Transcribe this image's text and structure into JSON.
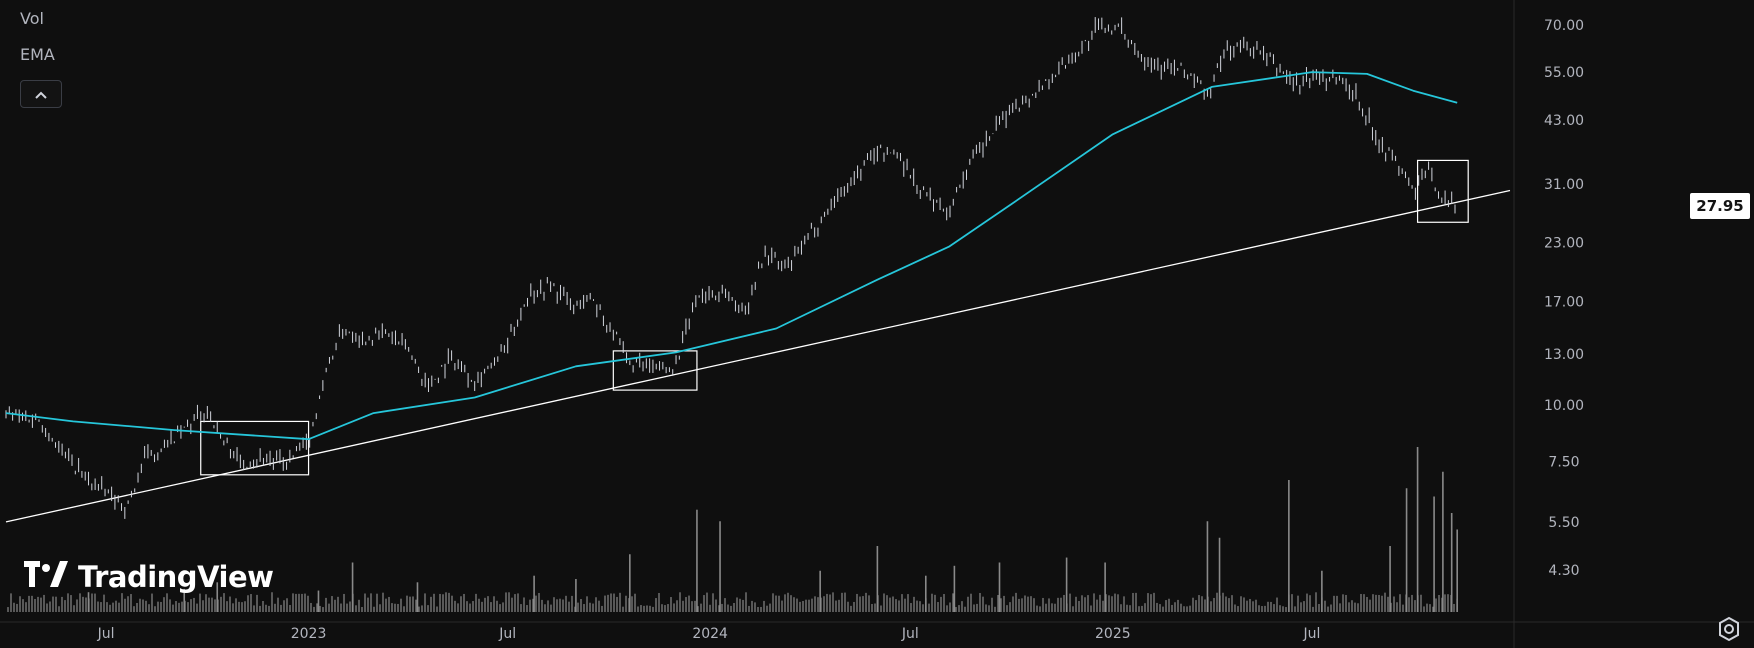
{
  "legend": {
    "vol_label": "Vol",
    "ema_label": "EMA"
  },
  "branding": {
    "logo_text": "TradingView"
  },
  "colors": {
    "background": "#0f0f0f",
    "price": "#d1d4dc",
    "ema": "#26c6da",
    "volume": "#8a8a8a",
    "trendline": "#ffffff",
    "axis_text": "#b2b5be"
  },
  "icons": {
    "collapse": "chevron-up-icon",
    "settings": "gear-icon"
  },
  "chart_data": {
    "type": "line",
    "y_scale": "log",
    "grid": false,
    "last_price": "27.95",
    "y_ticks": [
      "70.00",
      "55.00",
      "43.00",
      "31.00",
      "23.00",
      "17.00",
      "13.00",
      "10.00",
      "7.50",
      "5.50",
      "4.30"
    ],
    "y_tick_values": [
      70,
      55,
      43,
      31,
      23,
      17,
      13,
      10,
      7.5,
      5.5,
      4.3
    ],
    "x_ticks": [
      {
        "label": "Jul",
        "date": "2022-07-01"
      },
      {
        "label": "2023",
        "date": "2023-01-01"
      },
      {
        "label": "Jul",
        "date": "2023-07-01"
      },
      {
        "label": "2024",
        "date": "2024-01-01"
      },
      {
        "label": "Jul",
        "date": "2024-07-01"
      },
      {
        "label": "2025",
        "date": "2025-01-01"
      },
      {
        "label": "Jul",
        "date": "2025-07-01"
      }
    ],
    "x_range": [
      "2022-04-01",
      "2025-12-28"
    ],
    "price_series": {
      "type": "ohlc",
      "points": [
        [
          "2022-04-01",
          9.6
        ],
        [
          "2022-05-01",
          9.3
        ],
        [
          "2022-05-20",
          8.0
        ],
        [
          "2022-06-10",
          7.0
        ],
        [
          "2022-07-01",
          6.4
        ],
        [
          "2022-07-20",
          5.9
        ],
        [
          "2022-08-05",
          7.6
        ],
        [
          "2022-08-25",
          8.2
        ],
        [
          "2022-09-15",
          9.0
        ],
        [
          "2022-10-01",
          9.8
        ],
        [
          "2022-10-15",
          8.4
        ],
        [
          "2022-11-01",
          7.4
        ],
        [
          "2022-11-20",
          7.7
        ],
        [
          "2022-12-10",
          7.4
        ],
        [
          "2023-01-01",
          8.2
        ],
        [
          "2023-01-15",
          11.5
        ],
        [
          "2023-02-01",
          14.8
        ],
        [
          "2023-02-20",
          14.0
        ],
        [
          "2023-03-10",
          14.6
        ],
        [
          "2023-04-01",
          13.4
        ],
        [
          "2023-04-20",
          11.0
        ],
        [
          "2023-05-10",
          12.8
        ],
        [
          "2023-06-01",
          11.4
        ],
        [
          "2023-06-20",
          12.5
        ],
        [
          "2023-07-01",
          13.6
        ],
        [
          "2023-07-20",
          17.8
        ],
        [
          "2023-08-10",
          18.5
        ],
        [
          "2023-08-30",
          16.5
        ],
        [
          "2023-09-15",
          17.5
        ],
        [
          "2023-10-01",
          15.0
        ],
        [
          "2023-10-20",
          12.4
        ],
        [
          "2023-11-10",
          12.0
        ],
        [
          "2023-12-01",
          12.3
        ],
        [
          "2023-12-20",
          17.5
        ],
        [
          "2024-01-15",
          17.8
        ],
        [
          "2024-02-01",
          16.0
        ],
        [
          "2024-02-20",
          22.0
        ],
        [
          "2024-03-10",
          20.0
        ],
        [
          "2024-04-01",
          24.0
        ],
        [
          "2024-04-20",
          28.0
        ],
        [
          "2024-05-10",
          32.0
        ],
        [
          "2024-06-01",
          37.0
        ],
        [
          "2024-06-20",
          36.0
        ],
        [
          "2024-07-10",
          30.0
        ],
        [
          "2024-08-05",
          27.0
        ],
        [
          "2024-08-20",
          33.0
        ],
        [
          "2024-09-10",
          39.0
        ],
        [
          "2024-10-01",
          46.0
        ],
        [
          "2024-10-20",
          49.0
        ],
        [
          "2024-11-10",
          55.0
        ],
        [
          "2024-12-01",
          61.0
        ],
        [
          "2024-12-20",
          70.0
        ],
        [
          "2025-01-10",
          68.0
        ],
        [
          "2025-01-30",
          59.0
        ],
        [
          "2025-02-20",
          56.0
        ],
        [
          "2025-03-10",
          55.0
        ],
        [
          "2025-03-28",
          49.0
        ],
        [
          "2025-04-15",
          62.0
        ],
        [
          "2025-05-05",
          63.0
        ],
        [
          "2025-05-25",
          58.0
        ],
        [
          "2025-06-15",
          52.0
        ],
        [
          "2025-07-05",
          54.0
        ],
        [
          "2025-07-25",
          53.0
        ],
        [
          "2025-08-10",
          49.0
        ],
        [
          "2025-08-30",
          39.0
        ],
        [
          "2025-09-15",
          35.0
        ],
        [
          "2025-10-01",
          30.0
        ],
        [
          "2025-10-15",
          33.0
        ],
        [
          "2025-11-01",
          28.0
        ],
        [
          "2025-11-10",
          27.95
        ]
      ]
    },
    "ema_series": {
      "points": [
        [
          "2022-04-01",
          9.6
        ],
        [
          "2022-06-01",
          9.2
        ],
        [
          "2022-09-01",
          8.8
        ],
        [
          "2022-12-01",
          8.5
        ],
        [
          "2023-01-01",
          8.4
        ],
        [
          "2023-03-01",
          9.6
        ],
        [
          "2023-06-01",
          10.4
        ],
        [
          "2023-09-01",
          12.2
        ],
        [
          "2023-12-01",
          13.1
        ],
        [
          "2024-03-01",
          14.8
        ],
        [
          "2024-06-01",
          19.0
        ],
        [
          "2024-08-05",
          22.5
        ],
        [
          "2024-10-01",
          28.0
        ],
        [
          "2025-01-01",
          40.0
        ],
        [
          "2025-04-01",
          51.0
        ],
        [
          "2025-07-01",
          55.0
        ],
        [
          "2025-08-20",
          54.5
        ],
        [
          "2025-10-01",
          50.0
        ],
        [
          "2025-11-10",
          47.0
        ]
      ]
    },
    "trendline": {
      "start": [
        "2022-04-01",
        5.5
      ],
      "end": [
        "2025-12-28",
        30.0
      ]
    },
    "annotation_boxes": [
      {
        "start": "2022-09-25",
        "end": "2023-01-01",
        "low": 7.0,
        "high": 9.2
      },
      {
        "start": "2023-10-05",
        "end": "2023-12-20",
        "low": 10.8,
        "high": 13.2
      },
      {
        "start": "2025-10-05",
        "end": "2025-11-20",
        "low": 25.5,
        "high": 35.0
      }
    ],
    "volume": {
      "bars": [
        [
          "2022-06-15",
          0.12
        ],
        [
          "2022-09-10",
          0.14
        ],
        [
          "2022-10-10",
          0.18
        ],
        [
          "2023-01-10",
          0.13
        ],
        [
          "2023-02-10",
          0.3
        ],
        [
          "2023-04-10",
          0.18
        ],
        [
          "2023-07-25",
          0.22
        ],
        [
          "2023-09-01",
          0.2
        ],
        [
          "2023-10-20",
          0.35
        ],
        [
          "2023-12-20",
          0.62
        ],
        [
          "2024-01-10",
          0.55
        ],
        [
          "2024-04-10",
          0.25
        ],
        [
          "2024-06-01",
          0.4
        ],
        [
          "2024-07-15",
          0.22
        ],
        [
          "2024-08-10",
          0.28
        ],
        [
          "2024-09-20",
          0.3
        ],
        [
          "2024-11-20",
          0.33
        ],
        [
          "2024-12-25",
          0.3
        ],
        [
          "2025-03-28",
          0.55
        ],
        [
          "2025-04-08",
          0.45
        ],
        [
          "2025-06-10",
          0.8
        ],
        [
          "2025-07-10",
          0.25
        ],
        [
          "2025-09-10",
          0.4
        ],
        [
          "2025-09-25",
          0.75
        ],
        [
          "2025-10-05",
          1.0
        ],
        [
          "2025-10-20",
          0.7
        ],
        [
          "2025-10-28",
          0.85
        ],
        [
          "2025-11-05",
          0.6
        ],
        [
          "2025-11-10",
          0.5
        ]
      ]
    }
  }
}
